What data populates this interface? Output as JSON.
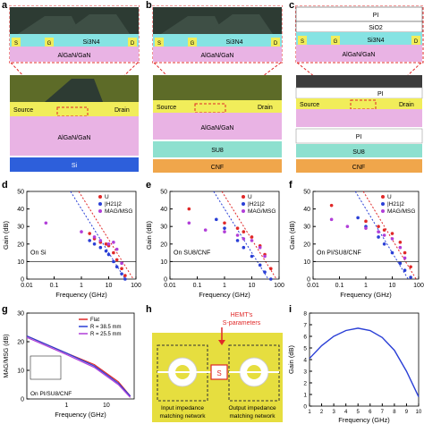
{
  "panel_labels": {
    "a": "a",
    "b": "b",
    "c": "c",
    "d": "d",
    "e": "e",
    "f": "f",
    "g": "g",
    "h": "h",
    "i": "i"
  },
  "colors": {
    "pink": "#e9b3e4",
    "cyan": "#86e3e3",
    "yellow": "#f1ed5a",
    "dark": "#2d3b33",
    "si": "#2d5fdb",
    "su8": "#8ee0cf",
    "cnf": "#f0a64b",
    "red_dash": "#e02828",
    "u": "#e02828",
    "h21": "#2a3fd6",
    "mag": "#b13ed8"
  },
  "structures": {
    "a": {
      "source": "S",
      "gate": "G",
      "drain": "D",
      "si3n4": "Si3N4",
      "algan": "AlGaN/GaN",
      "source_label": "Source",
      "drain_label": "Drain",
      "algan2": "AlGaN/GaN",
      "substrate": "Si"
    },
    "b": {
      "source": "S",
      "gate": "G",
      "drain": "D",
      "si3n4": "Si3N4",
      "algan": "AlGaN/GaN",
      "source_label": "Source",
      "drain_label": "Drain",
      "algan2": "AlGaN/GaN",
      "su8": "SU8",
      "substrate": "CNF"
    },
    "c": {
      "pi_top": "PI",
      "sio2": "SiO2",
      "source": "S",
      "gate": "G",
      "drain": "D",
      "si3n4": "Si3N4",
      "algan": "AlGaN/GaN",
      "pi_mid": "PI",
      "source_label": "Source",
      "drain_label": "Drain",
      "pi_low": "PI",
      "su8": "SU8",
      "substrate": "CNF"
    }
  },
  "plot_text": {
    "ylabel_gain": "Gain (dB)",
    "xlabel": "Frequency (GHz)",
    "legend": [
      "U",
      "|H21|2",
      "MAG/MSG"
    ],
    "d_label": "On Si",
    "e_label": "On SU8/CNF",
    "f_label": "On PI/SU8/CNF",
    "g_ylabel": "MAG/MSG (dB)",
    "g_label": "On PI/SU8/CNF",
    "g_legend": [
      "Flat",
      "R = 38.5 mm",
      "R = 25.5 mm"
    ],
    "h_title": "HEMT's S-parameters",
    "h_s": "S",
    "h_in": "Input impedance matching network",
    "h_out": "Output impedance matching network",
    "i_ylabel": "Gain (dB)",
    "i_xlabel": "Frequency (GHz)"
  },
  "chart_data": [
    {
      "panel": "d",
      "type": "scatter",
      "xlim": [
        0.01,
        100
      ],
      "ylim": [
        0,
        50
      ],
      "xscale": "log",
      "xticks": [
        "0.01",
        "0.1",
        "1",
        "10",
        "100"
      ],
      "yticks": [
        "0",
        "10",
        "20",
        "30",
        "40",
        "50"
      ],
      "series": [
        {
          "name": "U",
          "points": [
            [
              2,
              26
            ],
            [
              3,
              23
            ],
            [
              5,
              21
            ],
            [
              8,
              20
            ],
            [
              10,
              19
            ],
            [
              15,
              15
            ],
            [
              20,
              11
            ],
            [
              30,
              6
            ],
            [
              40,
              2
            ]
          ]
        },
        {
          "name": "|H21|2",
          "points": [
            [
              2,
              22
            ],
            [
              3,
              20
            ],
            [
              5,
              18
            ],
            [
              8,
              16
            ],
            [
              10,
              14
            ],
            [
              15,
              10
            ],
            [
              20,
              7
            ],
            [
              30,
              3
            ],
            [
              40,
              0
            ]
          ]
        },
        {
          "name": "MAG/MSG",
          "points": [
            [
              0.05,
              32
            ],
            [
              1,
              27
            ],
            [
              3,
              24
            ],
            [
              5,
              22
            ],
            [
              10,
              20
            ],
            [
              15,
              21
            ],
            [
              20,
              17
            ],
            [
              30,
              9
            ]
          ]
        }
      ]
    },
    {
      "panel": "e",
      "type": "scatter",
      "xlim": [
        0.01,
        100
      ],
      "ylim": [
        0,
        50
      ],
      "xscale": "log",
      "xticks": [
        "0.01",
        "0.1",
        "1",
        "10",
        "100"
      ],
      "yticks": [
        "0",
        "10",
        "20",
        "30",
        "40",
        "50"
      ],
      "series": [
        {
          "name": "U",
          "points": [
            [
              0.05,
              40
            ],
            [
              1,
              32
            ],
            [
              3,
              29
            ],
            [
              5,
              27
            ],
            [
              10,
              24
            ],
            [
              20,
              19
            ],
            [
              30,
              14
            ],
            [
              50,
              6
            ]
          ]
        },
        {
          "name": "|H21|2",
          "points": [
            [
              0.5,
              34
            ],
            [
              1,
              29
            ],
            [
              3,
              22
            ],
            [
              5,
              18
            ],
            [
              10,
              13
            ],
            [
              20,
              8
            ],
            [
              30,
              4
            ],
            [
              50,
              0
            ]
          ]
        },
        {
          "name": "MAG/MSG",
          "points": [
            [
              0.05,
              32
            ],
            [
              0.2,
              28
            ],
            [
              1,
              27
            ],
            [
              3,
              25
            ],
            [
              5,
              23
            ],
            [
              10,
              22
            ],
            [
              20,
              18
            ],
            [
              30,
              13
            ]
          ]
        }
      ]
    },
    {
      "panel": "f",
      "type": "scatter",
      "xlim": [
        0.01,
        100
      ],
      "ylim": [
        0,
        50
      ],
      "xscale": "log",
      "xticks": [
        "0.01",
        "0.1",
        "1",
        "10",
        "100"
      ],
      "yticks": [
        "0",
        "10",
        "20",
        "30",
        "40",
        "50"
      ],
      "series": [
        {
          "name": "U",
          "points": [
            [
              0.05,
              42
            ],
            [
              1,
              33
            ],
            [
              3,
              30
            ],
            [
              5,
              28
            ],
            [
              10,
              26
            ],
            [
              20,
              21
            ],
            [
              30,
              15
            ],
            [
              50,
              7
            ]
          ]
        },
        {
          "name": "|H21|2",
          "points": [
            [
              0.5,
              35
            ],
            [
              1,
              30
            ],
            [
              3,
              24
            ],
            [
              5,
              20
            ],
            [
              10,
              15
            ],
            [
              20,
              9
            ],
            [
              30,
              5
            ],
            [
              50,
              1
            ]
          ]
        },
        {
          "name": "MAG/MSG",
          "points": [
            [
              0.05,
              34
            ],
            [
              0.2,
              30
            ],
            [
              1,
              29
            ],
            [
              3,
              27
            ],
            [
              5,
              25
            ],
            [
              10,
              23
            ],
            [
              20,
              18
            ],
            [
              30,
              12
            ]
          ]
        }
      ]
    },
    {
      "panel": "g",
      "type": "line",
      "xlim": [
        0.1,
        50
      ],
      "ylim": [
        0,
        30
      ],
      "xscale": "log",
      "xticks": [
        "1",
        "10"
      ],
      "yticks": [
        "0",
        "10",
        "20",
        "30"
      ],
      "series": [
        {
          "name": "Flat",
          "points": [
            [
              0.1,
              22
            ],
            [
              1,
              16
            ],
            [
              5,
              12
            ],
            [
              10,
              9
            ],
            [
              20,
              6
            ],
            [
              40,
              1
            ]
          ]
        },
        {
          "name": "R = 38.5 mm",
          "points": [
            [
              0.1,
              22
            ],
            [
              1,
              16
            ],
            [
              5,
              11.5
            ],
            [
              10,
              8.5
            ],
            [
              20,
              5.5
            ],
            [
              40,
              1
            ]
          ]
        },
        {
          "name": "R = 25.5 mm",
          "points": [
            [
              0.1,
              21.5
            ],
            [
              1,
              15.5
            ],
            [
              5,
              11
            ],
            [
              10,
              8
            ],
            [
              20,
              5
            ],
            [
              40,
              0.5
            ]
          ]
        }
      ]
    },
    {
      "panel": "i",
      "type": "line",
      "xlim": [
        1,
        10
      ],
      "ylim": [
        0,
        8
      ],
      "xticks": [
        "1",
        "2",
        "3",
        "4",
        "5",
        "6",
        "7",
        "8",
        "9",
        "10"
      ],
      "yticks": [
        "0",
        "1",
        "2",
        "3",
        "4",
        "5",
        "6",
        "7",
        "8"
      ],
      "series": [
        {
          "points": [
            [
              1,
              4.1
            ],
            [
              2,
              5.2
            ],
            [
              3,
              6.0
            ],
            [
              4,
              6.5
            ],
            [
              5,
              6.7
            ],
            [
              6,
              6.5
            ],
            [
              7,
              5.9
            ],
            [
              8,
              4.8
            ],
            [
              9,
              3.0
            ],
            [
              10,
              0.8
            ]
          ]
        }
      ]
    }
  ]
}
